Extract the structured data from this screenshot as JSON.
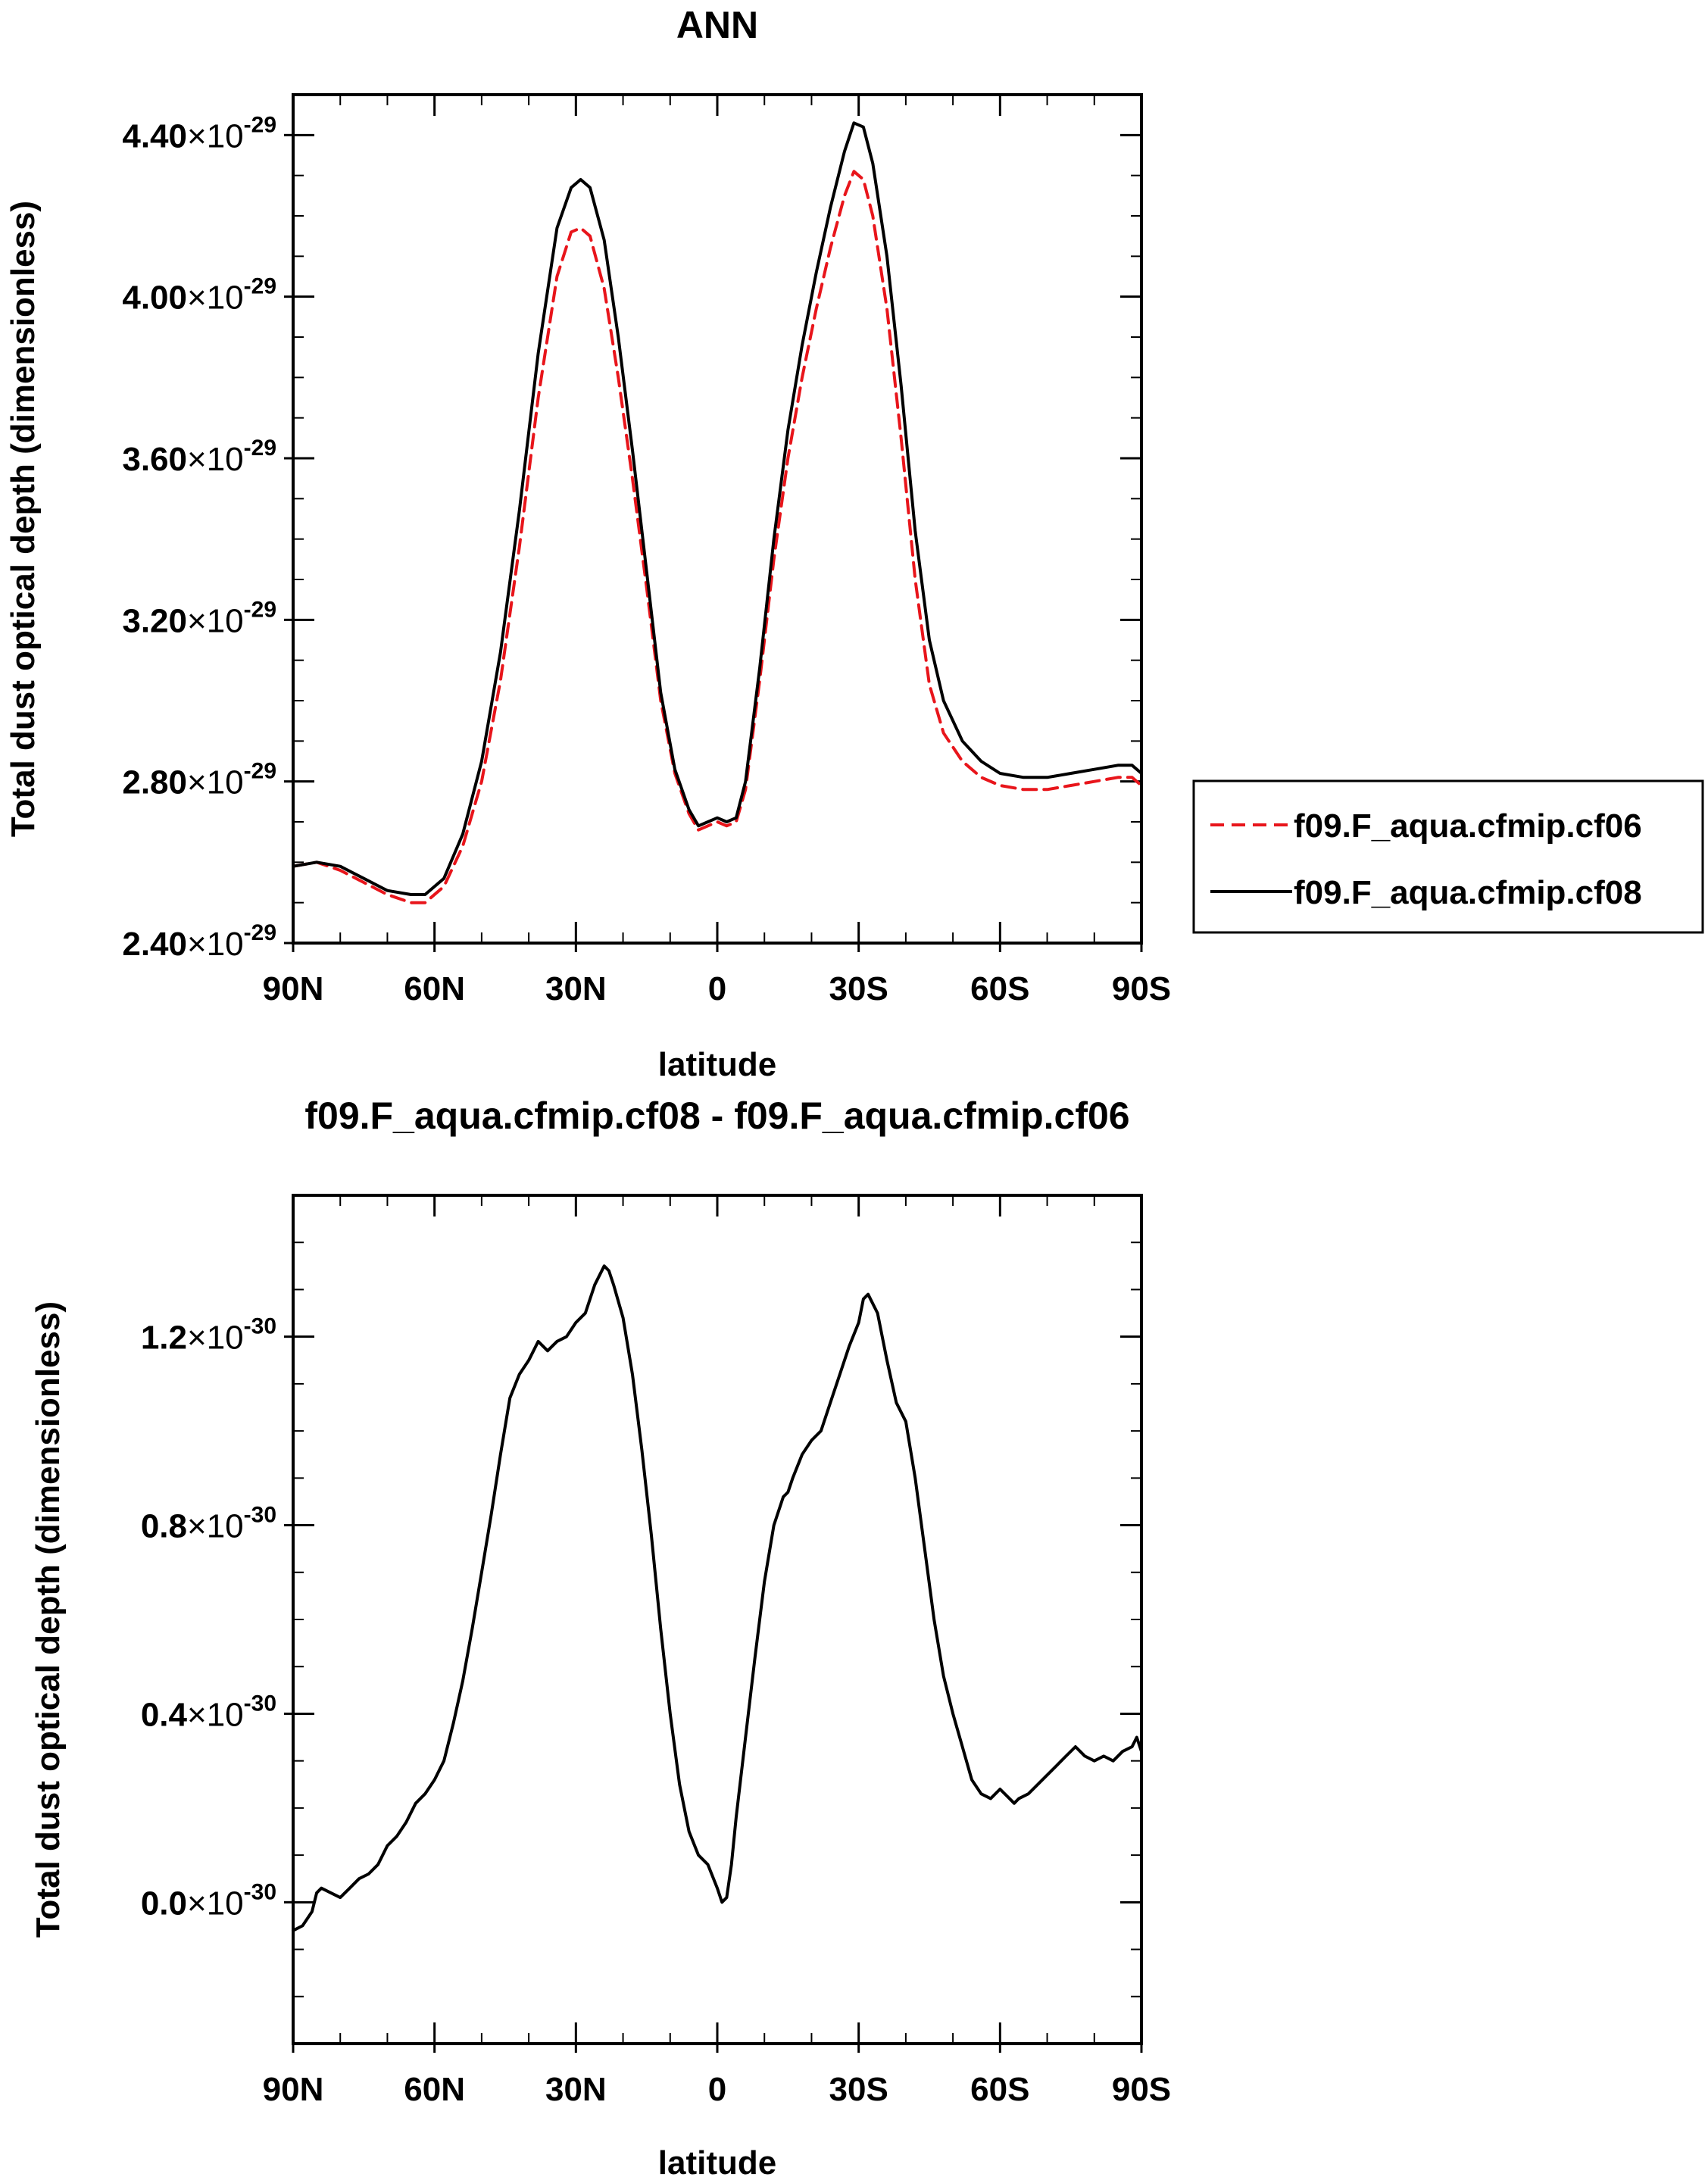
{
  "chart_data": [
    {
      "type": "line",
      "title": "ANN",
      "xlabel": "latitude",
      "ylabel": "Total dust optical depth (dimensionless)",
      "xlim": [
        -90,
        90
      ],
      "ylim": [
        2.4,
        4.5
      ],
      "y_exponent": -29,
      "x_ticks": [
        {
          "value": -90,
          "label": "90N"
        },
        {
          "value": -60,
          "label": "60N"
        },
        {
          "value": -30,
          "label": "30N"
        },
        {
          "value": 0,
          "label": "0"
        },
        {
          "value": 30,
          "label": "30S"
        },
        {
          "value": 60,
          "label": "60S"
        },
        {
          "value": 90,
          "label": "90S"
        }
      ],
      "y_ticks": [
        {
          "value": 2.4,
          "mantissa": "2.40"
        },
        {
          "value": 2.8,
          "mantissa": "2.80"
        },
        {
          "value": 3.2,
          "mantissa": "3.20"
        },
        {
          "value": 3.6,
          "mantissa": "3.60"
        },
        {
          "value": 4.0,
          "mantissa": "4.00"
        },
        {
          "value": 4.4,
          "mantissa": "4.40"
        }
      ],
      "legend_position": "right",
      "series": [
        {
          "name": "f09.F_aqua.cfmip.cf06",
          "color": "#e8151b",
          "style": "dashed",
          "x": [
            -90,
            -85,
            -80,
            -75,
            -70,
            -65,
            -62,
            -58,
            -54,
            -50,
            -46,
            -42,
            -38,
            -34,
            -31,
            -29,
            -27,
            -24,
            -21,
            -18,
            -15,
            -12,
            -9,
            -6,
            -4,
            -2,
            0,
            2,
            4,
            6,
            9,
            12,
            15,
            18,
            21,
            24,
            27,
            29,
            31,
            33,
            36,
            39,
            42,
            45,
            48,
            52,
            56,
            60,
            65,
            70,
            75,
            80,
            85,
            88,
            90
          ],
          "y": [
            2.59,
            2.6,
            2.58,
            2.55,
            2.52,
            2.5,
            2.5,
            2.54,
            2.64,
            2.8,
            3.05,
            3.38,
            3.75,
            4.05,
            4.16,
            4.17,
            4.15,
            4.02,
            3.8,
            3.55,
            3.28,
            3.0,
            2.82,
            2.72,
            2.68,
            2.69,
            2.7,
            2.69,
            2.7,
            2.78,
            3.05,
            3.35,
            3.6,
            3.8,
            3.97,
            4.12,
            4.25,
            4.31,
            4.29,
            4.2,
            3.97,
            3.65,
            3.3,
            3.04,
            2.92,
            2.85,
            2.81,
            2.79,
            2.78,
            2.78,
            2.79,
            2.8,
            2.81,
            2.81,
            2.79
          ]
        },
        {
          "name": "f09.F_aqua.cfmip.cf08",
          "color": "#000000",
          "style": "solid",
          "x": [
            -90,
            -85,
            -80,
            -75,
            -70,
            -65,
            -62,
            -58,
            -54,
            -50,
            -46,
            -42,
            -38,
            -34,
            -31,
            -29,
            -27,
            -24,
            -21,
            -18,
            -15,
            -12,
            -9,
            -6,
            -4,
            -2,
            0,
            2,
            4,
            6,
            9,
            12,
            15,
            18,
            21,
            24,
            27,
            29,
            31,
            33,
            36,
            39,
            42,
            45,
            48,
            52,
            56,
            60,
            65,
            70,
            75,
            80,
            85,
            88,
            90
          ],
          "y": [
            2.59,
            2.6,
            2.59,
            2.56,
            2.53,
            2.52,
            2.52,
            2.56,
            2.67,
            2.85,
            3.12,
            3.47,
            3.86,
            4.17,
            4.27,
            4.29,
            4.27,
            4.14,
            3.9,
            3.62,
            3.32,
            3.02,
            2.83,
            2.73,
            2.69,
            2.7,
            2.71,
            2.7,
            2.71,
            2.8,
            3.08,
            3.4,
            3.67,
            3.88,
            4.06,
            4.22,
            4.36,
            4.43,
            4.42,
            4.33,
            4.1,
            3.78,
            3.42,
            3.15,
            3.0,
            2.9,
            2.85,
            2.82,
            2.81,
            2.81,
            2.82,
            2.83,
            2.84,
            2.84,
            2.82
          ]
        }
      ]
    },
    {
      "type": "line",
      "title": "f09.F_aqua.cfmip.cf08 - f09.F_aqua.cfmip.cf06",
      "xlabel": "latitude",
      "ylabel": "Total dust optical depth (dimensionless)",
      "xlim": [
        -90,
        90
      ],
      "ylim": [
        -0.3,
        1.5
      ],
      "y_exponent": -30,
      "x_ticks": [
        {
          "value": -90,
          "label": "90N"
        },
        {
          "value": -60,
          "label": "60N"
        },
        {
          "value": -30,
          "label": "30N"
        },
        {
          "value": 0,
          "label": "0"
        },
        {
          "value": 30,
          "label": "30S"
        },
        {
          "value": 60,
          "label": "60S"
        },
        {
          "value": 90,
          "label": "90S"
        }
      ],
      "y_ticks": [
        {
          "value": 0.0,
          "mantissa": "0.0"
        },
        {
          "value": 0.4,
          "mantissa": "0.4"
        },
        {
          "value": 0.8,
          "mantissa": "0.8"
        },
        {
          "value": 1.2,
          "mantissa": "1.2"
        }
      ],
      "series": [
        {
          "color": "#000000",
          "style": "solid",
          "x": [
            -90,
            -88,
            -86,
            -85,
            -84,
            -82,
            -80,
            -78,
            -76,
            -74,
            -72,
            -70,
            -68,
            -66,
            -64,
            -62,
            -60,
            -58,
            -56,
            -54,
            -52,
            -50,
            -48,
            -46,
            -44,
            -42,
            -40,
            -38,
            -36,
            -35,
            -34,
            -32,
            -30,
            -28,
            -27,
            -26,
            -24,
            -23,
            -22,
            -20,
            -18,
            -16,
            -14,
            -12,
            -10,
            -8,
            -6,
            -4,
            -2,
            0,
            1,
            2,
            3,
            4,
            6,
            8,
            10,
            12,
            14,
            15,
            16,
            18,
            20,
            22,
            24,
            26,
            28,
            30,
            31,
            32,
            34,
            36,
            38,
            40,
            42,
            44,
            46,
            48,
            50,
            52,
            54,
            56,
            58,
            60,
            62,
            63,
            64,
            66,
            68,
            70,
            72,
            74,
            76,
            77,
            78,
            80,
            82,
            84,
            86,
            88,
            89,
            90
          ],
          "y": [
            -0.06,
            -0.05,
            -0.02,
            0.02,
            0.03,
            0.02,
            0.01,
            0.03,
            0.05,
            0.06,
            0.08,
            0.12,
            0.14,
            0.17,
            0.21,
            0.23,
            0.26,
            0.3,
            0.38,
            0.47,
            0.58,
            0.7,
            0.82,
            0.95,
            1.07,
            1.12,
            1.15,
            1.19,
            1.17,
            1.18,
            1.19,
            1.2,
            1.23,
            1.25,
            1.28,
            1.31,
            1.35,
            1.34,
            1.31,
            1.24,
            1.12,
            0.96,
            0.78,
            0.58,
            0.4,
            0.25,
            0.15,
            0.1,
            0.08,
            0.03,
            0.0,
            0.01,
            0.08,
            0.18,
            0.35,
            0.52,
            0.68,
            0.8,
            0.86,
            0.87,
            0.9,
            0.95,
            0.98,
            1.0,
            1.06,
            1.12,
            1.18,
            1.23,
            1.28,
            1.29,
            1.25,
            1.15,
            1.06,
            1.02,
            0.9,
            0.75,
            0.6,
            0.48,
            0.4,
            0.33,
            0.26,
            0.23,
            0.22,
            0.24,
            0.22,
            0.21,
            0.22,
            0.23,
            0.25,
            0.27,
            0.29,
            0.31,
            0.33,
            0.32,
            0.31,
            0.3,
            0.31,
            0.3,
            0.32,
            0.33,
            0.35,
            0.32
          ]
        }
      ]
    }
  ]
}
